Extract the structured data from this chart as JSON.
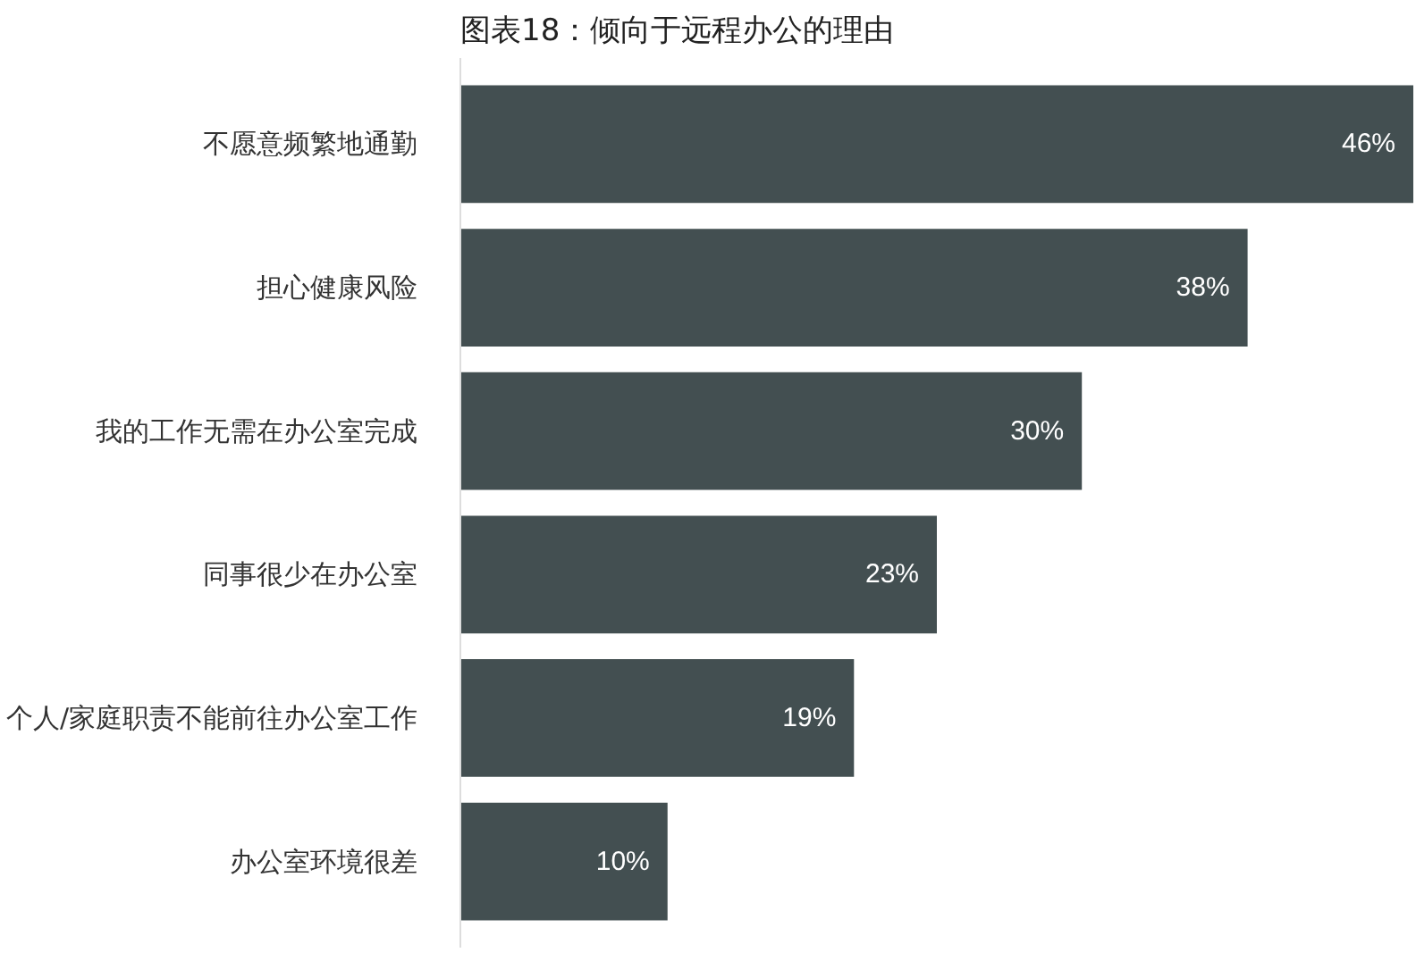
{
  "chart_data": {
    "type": "bar",
    "orientation": "horizontal",
    "title": "图表18：倾向于远程办公的理由",
    "categories": [
      "不愿意频繁地通勤",
      "担心健康风险",
      "我的工作无需在办公室完成",
      "同事很少在办公室",
      "个人/家庭职责不能前往办公室工作",
      "办公室环境很差"
    ],
    "values": [
      46,
      38,
      30,
      23,
      19,
      10
    ],
    "value_labels": [
      "46%",
      "38%",
      "30%",
      "23%",
      "19%",
      "10%"
    ],
    "color": "#434f51",
    "grid": false
  }
}
